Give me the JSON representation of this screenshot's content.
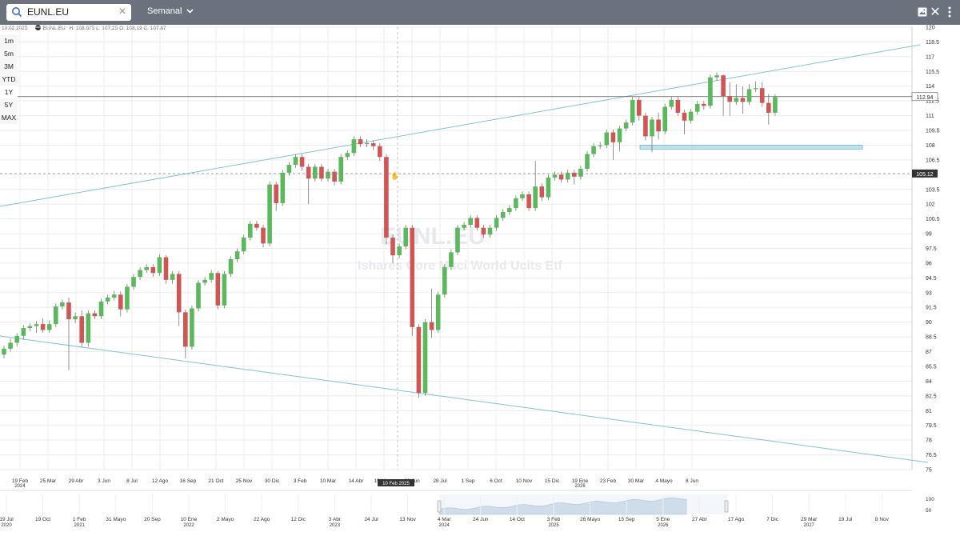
{
  "toolbar": {
    "search_value": "EUNL.EU",
    "interval_label": "Semanal",
    "accent": "#6b717d"
  },
  "ranges": [
    "1m",
    "5m",
    "3M",
    "YTD",
    "1Y",
    "5Y",
    "MAX"
  ],
  "info": {
    "date": "10.02.2025",
    "symbol": "EUNL.EU",
    "values": "H: 108.675  L: 107.25  O: 108.19  C: 107.87"
  },
  "watermark": {
    "symbol": "EUNL.EU",
    "name": "Ishares Core Msci World Ucits Etf"
  },
  "chart_data": {
    "type": "candlestick",
    "ylim": [
      75,
      120
    ],
    "y_ticks": [
      "120",
      "118.5",
      "117",
      "115.5",
      "114",
      "112.5",
      "111",
      "109.5",
      "108",
      "106.5",
      "105",
      "103.5",
      "102",
      "100.5",
      "99",
      "97.5",
      "96",
      "94.5",
      "93",
      "91.5",
      "90",
      "88.5",
      "87",
      "85.5",
      "84",
      "82.5",
      "81",
      "79.5",
      "78",
      "76.5",
      "75"
    ],
    "x_ticks": [
      {
        "label": "19 Feb",
        "sub": "2024"
      },
      {
        "label": "25 Mar",
        "sub": ""
      },
      {
        "label": "29 Abr",
        "sub": ""
      },
      {
        "label": "3 Jun",
        "sub": ""
      },
      {
        "label": "8 Jul",
        "sub": ""
      },
      {
        "label": "12 Ago",
        "sub": ""
      },
      {
        "label": "16 Sep",
        "sub": ""
      },
      {
        "label": "21 Oct",
        "sub": ""
      },
      {
        "label": "25 Nov",
        "sub": ""
      },
      {
        "label": "30 Dic",
        "sub": ""
      },
      {
        "label": "3 Feb",
        "sub": ""
      },
      {
        "label": "10 Mar",
        "sub": ""
      },
      {
        "label": "14 Abr",
        "sub": ""
      },
      {
        "label": "19 Mayo",
        "sub": ""
      },
      {
        "label": "23 Jun",
        "sub": ""
      },
      {
        "label": "28 Jul",
        "sub": ""
      },
      {
        "label": "1 Sep",
        "sub": ""
      },
      {
        "label": "6 Oct",
        "sub": ""
      },
      {
        "label": "10 Nov",
        "sub": ""
      },
      {
        "label": "15 Dic",
        "sub": ""
      },
      {
        "label": "19 Ene",
        "sub": "2026"
      },
      {
        "label": "23 Feb",
        "sub": ""
      },
      {
        "label": "30 Mar",
        "sub": ""
      },
      {
        "label": "4 Mayo",
        "sub": ""
      },
      {
        "label": "8 Jun",
        "sub": ""
      }
    ],
    "crosshair_x_label": "10 Feb 2025",
    "crosshair_y_label": "105.12",
    "last_price_label": "112.94",
    "last_price": 112.94,
    "crosshair_price": 105.12,
    "zone": [
      107.6,
      108.0
    ],
    "candles": [
      [
        86.7,
        87.3,
        86.3,
        87.6
      ],
      [
        87.3,
        87.9,
        87.0,
        88.3
      ],
      [
        87.9,
        88.6,
        87.5,
        88.9
      ],
      [
        88.6,
        89.4,
        88.2,
        89.7
      ],
      [
        89.4,
        89.6,
        89.1,
        89.9
      ],
      [
        89.6,
        89.8,
        88.9,
        90.1
      ],
      [
        89.8,
        89.2,
        88.9,
        90.4
      ],
      [
        89.2,
        89.8,
        88.9,
        90.2
      ],
      [
        89.8,
        91.6,
        89.5,
        91.9
      ],
      [
        91.6,
        92.0,
        91.3,
        92.3
      ],
      [
        92.0,
        90.3,
        85.1,
        92.5
      ],
      [
        90.3,
        90.6,
        89.9,
        91.0
      ],
      [
        90.6,
        87.9,
        87.5,
        91.2
      ],
      [
        87.9,
        90.9,
        87.5,
        91.2
      ],
      [
        90.9,
        90.6,
        90.3,
        91.2
      ],
      [
        90.6,
        92.1,
        90.3,
        92.4
      ],
      [
        92.1,
        92.5,
        91.8,
        92.8
      ],
      [
        92.5,
        92.8,
        92.2,
        93.2
      ],
      [
        92.8,
        91.3,
        90.6,
        93.1
      ],
      [
        91.3,
        93.6,
        91.0,
        93.9
      ],
      [
        93.6,
        94.6,
        93.3,
        94.9
      ],
      [
        94.6,
        95.3,
        94.3,
        95.6
      ],
      [
        95.3,
        95.6,
        95.0,
        95.9
      ],
      [
        95.6,
        95.0,
        94.6,
        95.9
      ],
      [
        95.0,
        96.6,
        94.7,
        96.9
      ],
      [
        96.6,
        94.3,
        93.9,
        96.8
      ],
      [
        94.3,
        94.9,
        93.9,
        95.2
      ],
      [
        94.9,
        91.0,
        89.6,
        95.2
      ],
      [
        91.0,
        87.5,
        86.3,
        91.3
      ],
      [
        87.5,
        91.4,
        87.2,
        91.7
      ],
      [
        91.4,
        94.0,
        91.1,
        94.3
      ],
      [
        94.0,
        94.3,
        93.7,
        94.6
      ],
      [
        94.3,
        95.0,
        94.0,
        95.3
      ],
      [
        95.0,
        91.7,
        91.3,
        95.2
      ],
      [
        91.7,
        94.9,
        91.4,
        95.2
      ],
      [
        94.9,
        96.4,
        94.6,
        96.7
      ],
      [
        96.4,
        97.2,
        96.1,
        97.5
      ],
      [
        97.2,
        98.6,
        96.9,
        98.9
      ],
      [
        98.6,
        100.0,
        98.3,
        100.3
      ],
      [
        100.0,
        99.6,
        99.3,
        100.3
      ],
      [
        99.6,
        98.0,
        97.6,
        99.9
      ],
      [
        98.0,
        104.0,
        97.7,
        104.3
      ],
      [
        104.0,
        102.1,
        101.3,
        104.3
      ],
      [
        102.1,
        105.2,
        101.8,
        105.5
      ],
      [
        105.2,
        106.0,
        104.9,
        106.3
      ],
      [
        106.0,
        106.8,
        105.7,
        107.1
      ],
      [
        106.8,
        105.8,
        105.4,
        107.1
      ],
      [
        105.8,
        104.6,
        102.0,
        106.1
      ],
      [
        104.6,
        105.8,
        104.3,
        106.1
      ],
      [
        105.8,
        104.6,
        104.3,
        106.1
      ],
      [
        104.6,
        105.3,
        104.3,
        105.6
      ],
      [
        105.3,
        104.3,
        103.9,
        105.6
      ],
      [
        104.3,
        106.8,
        104.0,
        107.1
      ],
      [
        106.8,
        107.2,
        106.5,
        107.5
      ],
      [
        107.2,
        108.6,
        106.9,
        108.9
      ],
      [
        108.6,
        108.1,
        107.8,
        108.9
      ],
      [
        108.1,
        108.2,
        107.8,
        108.6
      ],
      [
        108.2,
        107.9,
        107.5,
        108.5
      ],
      [
        107.9,
        106.8,
        106.4,
        108.2
      ],
      [
        106.8,
        98.6,
        97.9,
        107.1
      ],
      [
        98.6,
        96.8,
        96.0,
        98.9
      ],
      [
        96.8,
        97.7,
        96.5,
        98.0
      ],
      [
        97.7,
        99.6,
        97.4,
        99.9
      ],
      [
        99.6,
        89.5,
        88.6,
        99.9
      ],
      [
        89.5,
        82.8,
        82.3,
        89.8
      ],
      [
        82.8,
        90.0,
        82.5,
        90.3
      ],
      [
        90.0,
        89.2,
        88.4,
        93.4
      ],
      [
        89.2,
        92.8,
        88.9,
        93.1
      ],
      [
        92.8,
        95.6,
        92.5,
        95.9
      ],
      [
        95.6,
        97.1,
        95.3,
        97.4
      ],
      [
        97.1,
        99.6,
        96.8,
        99.9
      ],
      [
        99.6,
        99.9,
        99.3,
        100.2
      ],
      [
        99.9,
        100.6,
        99.6,
        100.9
      ],
      [
        100.6,
        99.6,
        99.3,
        100.9
      ],
      [
        99.6,
        98.9,
        98.6,
        99.9
      ],
      [
        98.9,
        99.6,
        98.6,
        99.9
      ],
      [
        99.6,
        100.6,
        99.3,
        100.9
      ],
      [
        100.6,
        101.2,
        100.3,
        101.5
      ],
      [
        101.2,
        101.6,
        100.9,
        101.9
      ],
      [
        101.6,
        102.6,
        101.3,
        102.9
      ],
      [
        102.6,
        103.0,
        102.3,
        103.3
      ],
      [
        103.0,
        101.6,
        101.3,
        103.3
      ],
      [
        101.6,
        103.8,
        101.3,
        106.4
      ],
      [
        103.8,
        102.7,
        102.3,
        104.1
      ],
      [
        102.7,
        104.7,
        102.4,
        105.0
      ],
      [
        104.7,
        105.0,
        104.4,
        105.3
      ],
      [
        105.0,
        104.5,
        104.2,
        105.3
      ],
      [
        104.5,
        105.2,
        104.2,
        105.5
      ],
      [
        105.2,
        104.8,
        104.0,
        105.5
      ],
      [
        104.8,
        105.6,
        104.5,
        105.9
      ],
      [
        105.6,
        107.1,
        105.3,
        107.4
      ],
      [
        107.1,
        107.9,
        106.8,
        108.2
      ],
      [
        107.9,
        108.0,
        107.6,
        108.3
      ],
      [
        108.0,
        109.3,
        107.7,
        109.6
      ],
      [
        109.3,
        108.3,
        106.5,
        109.6
      ],
      [
        108.3,
        109.7,
        107.4,
        110.0
      ],
      [
        109.7,
        110.3,
        109.4,
        110.6
      ],
      [
        110.3,
        112.6,
        110.0,
        112.9
      ],
      [
        112.6,
        111.0,
        110.5,
        112.9
      ],
      [
        111.0,
        108.9,
        108.5,
        111.3
      ],
      [
        108.9,
        110.6,
        107.3,
        110.9
      ],
      [
        110.6,
        109.4,
        108.6,
        111.3
      ],
      [
        109.4,
        111.9,
        109.1,
        112.2
      ],
      [
        111.9,
        112.6,
        111.6,
        112.9
      ],
      [
        112.6,
        111.3,
        111.0,
        112.9
      ],
      [
        111.3,
        110.5,
        109.1,
        111.6
      ],
      [
        110.5,
        111.4,
        110.2,
        111.7
      ],
      [
        111.4,
        112.2,
        111.1,
        112.5
      ],
      [
        112.2,
        112.0,
        111.6,
        112.5
      ],
      [
        112.0,
        114.9,
        111.7,
        115.2
      ],
      [
        114.9,
        115.1,
        114.6,
        115.4
      ],
      [
        115.1,
        113.0,
        111.0,
        115.2
      ],
      [
        113.0,
        112.4,
        111.0,
        114.4
      ],
      [
        112.4,
        112.8,
        112.1,
        114.2
      ],
      [
        112.8,
        112.4,
        111.2,
        114.0
      ],
      [
        112.4,
        113.7,
        112.1,
        114.2
      ],
      [
        113.7,
        113.8,
        113.4,
        114.5
      ],
      [
        113.8,
        112.3,
        111.9,
        114.4
      ],
      [
        112.3,
        111.3,
        110.1,
        113.2
      ],
      [
        111.3,
        112.9,
        111.0,
        113.2
      ]
    ],
    "navigator": {
      "x_ticks": [
        {
          "label": "19 Jul",
          "sub": "2020"
        },
        {
          "label": "19 Oct",
          "sub": ""
        },
        {
          "label": "1 Feb",
          "sub": "2021"
        },
        {
          "label": "31 Mayo",
          "sub": ""
        },
        {
          "label": "20 Sep",
          "sub": ""
        },
        {
          "label": "10 Ene",
          "sub": "2022"
        },
        {
          "label": "2 Mayo",
          "sub": ""
        },
        {
          "label": "22 Ago",
          "sub": ""
        },
        {
          "label": "12 Dic",
          "sub": ""
        },
        {
          "label": "3 Abr",
          "sub": "2023"
        },
        {
          "label": "24 Jul",
          "sub": ""
        },
        {
          "label": "13 Nov",
          "sub": ""
        },
        {
          "label": "4 Mar",
          "sub": "2024"
        },
        {
          "label": "24 Jun",
          "sub": ""
        },
        {
          "label": "14 Oct",
          "sub": ""
        },
        {
          "label": "3 Feb",
          "sub": "2025"
        },
        {
          "label": "26 Mayo",
          "sub": ""
        },
        {
          "label": "15 Sep",
          "sub": ""
        },
        {
          "label": "5 Ene",
          "sub": "2026"
        },
        {
          "label": "27 Abr",
          "sub": ""
        },
        {
          "label": "17 Ago",
          "sub": ""
        },
        {
          "label": "7 Dic",
          "sub": ""
        },
        {
          "label": "29 Mar",
          "sub": "2027"
        },
        {
          "label": "19 Jul",
          "sub": ""
        },
        {
          "label": "8 Nov",
          "sub": ""
        }
      ],
      "y_ticks": [
        "100",
        "50"
      ]
    },
    "colors": {
      "up": "#5cb85c",
      "down": "#d05555",
      "trendline": "#7ec4cf",
      "zone": "#a8d8ea"
    }
  }
}
